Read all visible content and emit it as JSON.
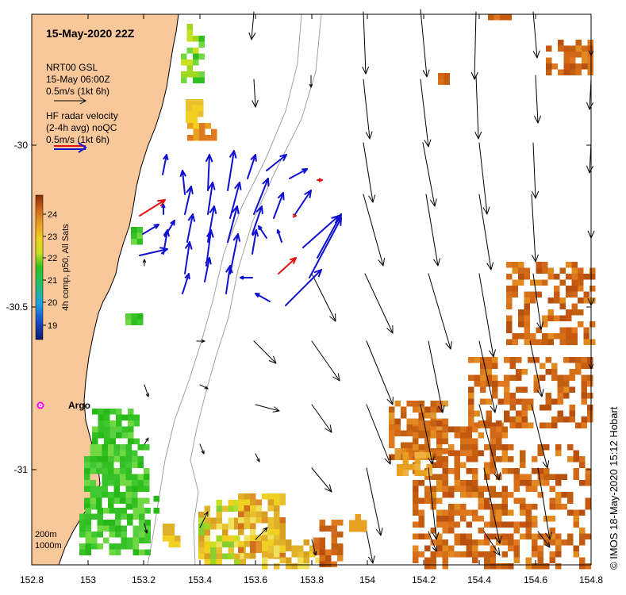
{
  "title": "15-May-2020 22Z",
  "legend": {
    "model_lines": [
      "NRT00 GSL",
      "15-May 06:00Z",
      "0.5m/s (1kt 6h)"
    ],
    "radar_lines": [
      "HF radar velocity",
      "(2-4h avg) noQC",
      "0.5m/s (1kt 6h)"
    ]
  },
  "colorbar": {
    "label": "4h comp, p50, All Sats",
    "ticks": [
      "19",
      "20",
      "21",
      "22",
      "23",
      "24"
    ]
  },
  "argo_label": "Argo",
  "depth_labels": [
    "200m",
    "1000m"
  ],
  "credit": "© IMOS 18-May-2020 15:12 Hobart",
  "x_ticks": [
    "152.8",
    "153",
    "153.2",
    "153.4",
    "153.6",
    "153.8",
    "154",
    "154.2",
    "154.4",
    "154.6",
    "154.8"
  ],
  "y_ticks": [
    "-30",
    "-30.5",
    "-31"
  ],
  "colors": {
    "land": "#f8c79a",
    "coast": "#000000",
    "model_arrow": "#000000",
    "radar_arrow": "#1010d0",
    "radar_arrow_alt": "#e01010",
    "argo": "#ff00ff",
    "isobath": "#a0a0a0"
  }
}
